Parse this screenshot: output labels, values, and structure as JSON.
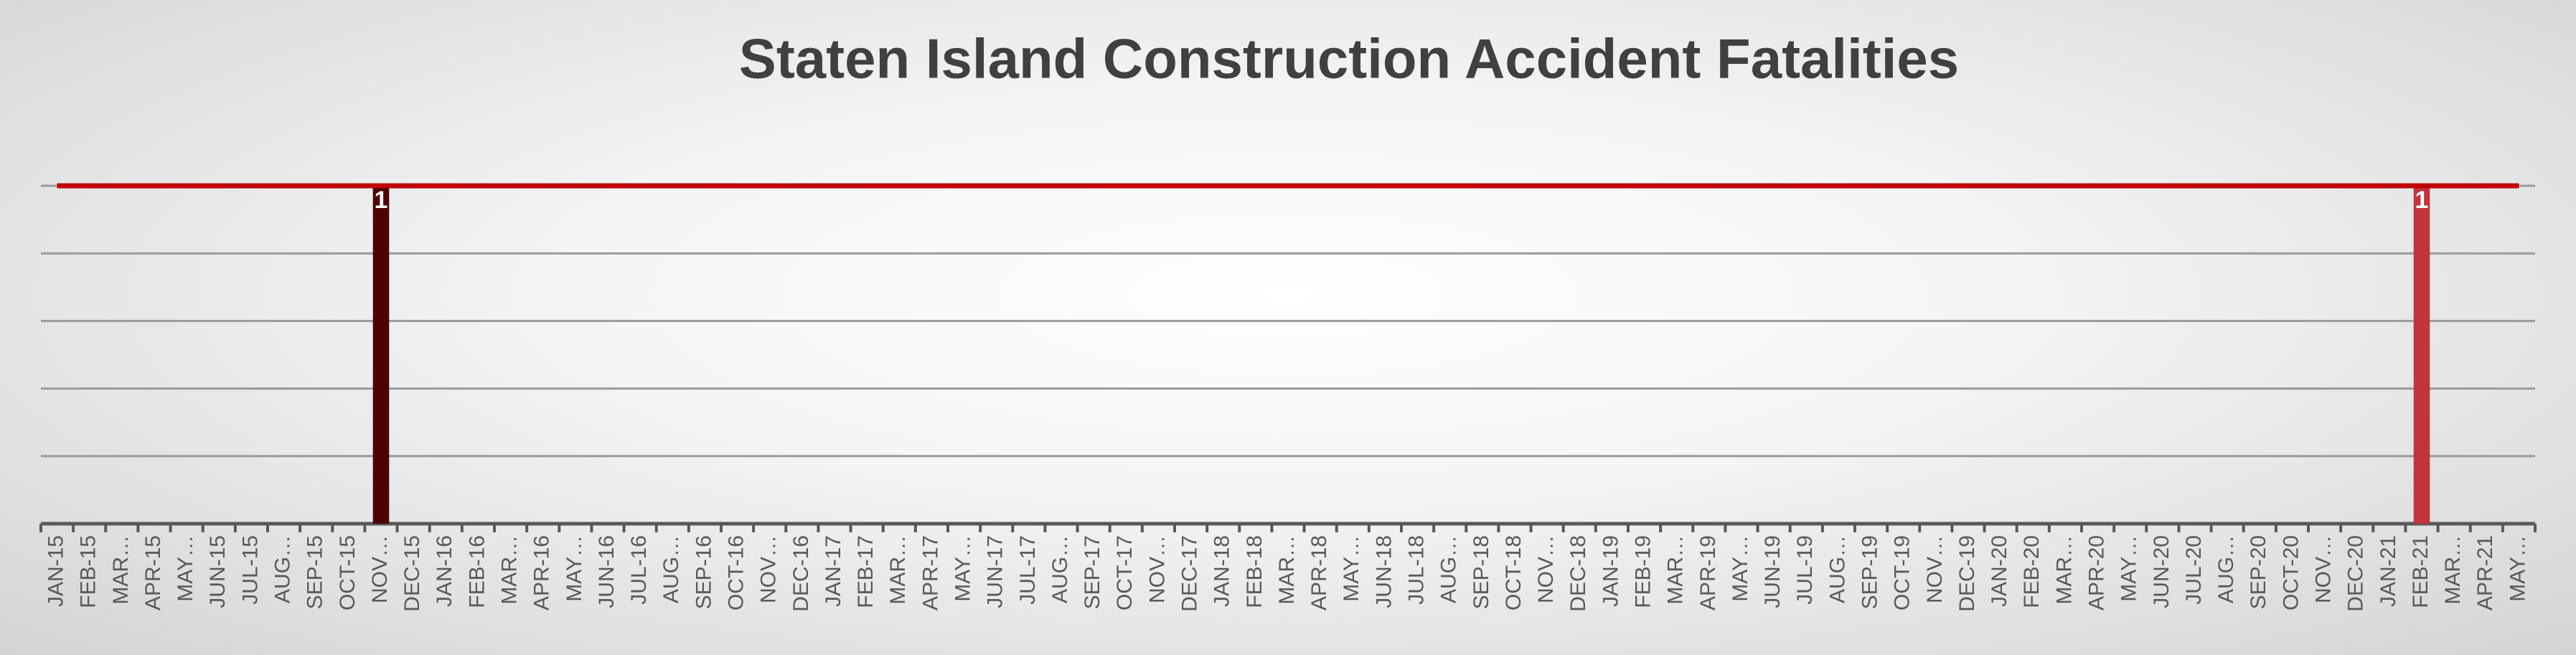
{
  "chart_data": {
    "type": "bar",
    "title": "Staten Island Construction Accident Fatalities",
    "categories": [
      "JAN-15",
      "FEB-15",
      "MAR…",
      "APR-15",
      "MAY…",
      "JUN-15",
      "JUL-15",
      "AUG…",
      "SEP-15",
      "OCT-15",
      "NOV…",
      "DEC-15",
      "JAN-16",
      "FEB-16",
      "MAR…",
      "APR-16",
      "MAY…",
      "JUN-16",
      "JUL-16",
      "AUG…",
      "SEP-16",
      "OCT-16",
      "NOV…",
      "DEC-16",
      "JAN-17",
      "FEB-17",
      "MAR…",
      "APR-17",
      "MAY…",
      "JUN-17",
      "JUL-17",
      "AUG…",
      "SEP-17",
      "OCT-17",
      "NOV…",
      "DEC-17",
      "JAN-18",
      "FEB-18",
      "MAR…",
      "APR-18",
      "MAY…",
      "JUN-18",
      "JUL-18",
      "AUG…",
      "SEP-18",
      "OCT-18",
      "NOV…",
      "DEC-18",
      "JAN-19",
      "FEB-19",
      "MAR…",
      "APR-19",
      "MAY…",
      "JUN-19",
      "JUL-19",
      "AUG…",
      "SEP-19",
      "OCT-19",
      "NOV…",
      "DEC-19",
      "JAN-20",
      "FEB-20",
      "MAR…",
      "APR-20",
      "MAY…",
      "JUN-20",
      "JUL-20",
      "AUG…",
      "SEP-20",
      "OCT-20",
      "NOV…",
      "DEC-20",
      "JAN-21",
      "FEB-21",
      "MAR…",
      "APR-21",
      "MAY…"
    ],
    "ylim": [
      0,
      1
    ],
    "yticks": [
      0,
      0.2,
      0.4,
      0.6,
      0.8,
      1
    ],
    "grid": true,
    "ytick_labels": false,
    "series": [
      {
        "type": "bar",
        "color": "#4d0000",
        "color_overrides": [
          {
            "index": 73,
            "color": "#c0343c"
          }
        ],
        "data_labels": true,
        "values": [
          0,
          0,
          0,
          0,
          0,
          0,
          0,
          0,
          0,
          0,
          1,
          0,
          0,
          0,
          0,
          0,
          0,
          0,
          0,
          0,
          0,
          0,
          0,
          0,
          0,
          0,
          0,
          0,
          0,
          0,
          0,
          0,
          0,
          0,
          0,
          0,
          0,
          0,
          0,
          0,
          0,
          0,
          0,
          0,
          0,
          0,
          0,
          0,
          0,
          0,
          0,
          0,
          0,
          0,
          0,
          0,
          0,
          0,
          0,
          0,
          0,
          0,
          0,
          0,
          0,
          0,
          0,
          0,
          0,
          0,
          0,
          0,
          0,
          1,
          0,
          0,
          0
        ]
      },
      {
        "type": "line",
        "color": "#c00000",
        "values": [
          1,
          1,
          1,
          1,
          1,
          1,
          1,
          1,
          1,
          1,
          1,
          1,
          1,
          1,
          1,
          1,
          1,
          1,
          1,
          1,
          1,
          1,
          1,
          1,
          1,
          1,
          1,
          1,
          1,
          1,
          1,
          1,
          1,
          1,
          1,
          1,
          1,
          1,
          1,
          1,
          1,
          1,
          1,
          1,
          1,
          1,
          1,
          1,
          1,
          1,
          1,
          1,
          1,
          1,
          1,
          1,
          1,
          1,
          1,
          1,
          1,
          1,
          1,
          1,
          1,
          1,
          1,
          1,
          1,
          1,
          1,
          1,
          1,
          1,
          1,
          1,
          1
        ]
      }
    ]
  }
}
